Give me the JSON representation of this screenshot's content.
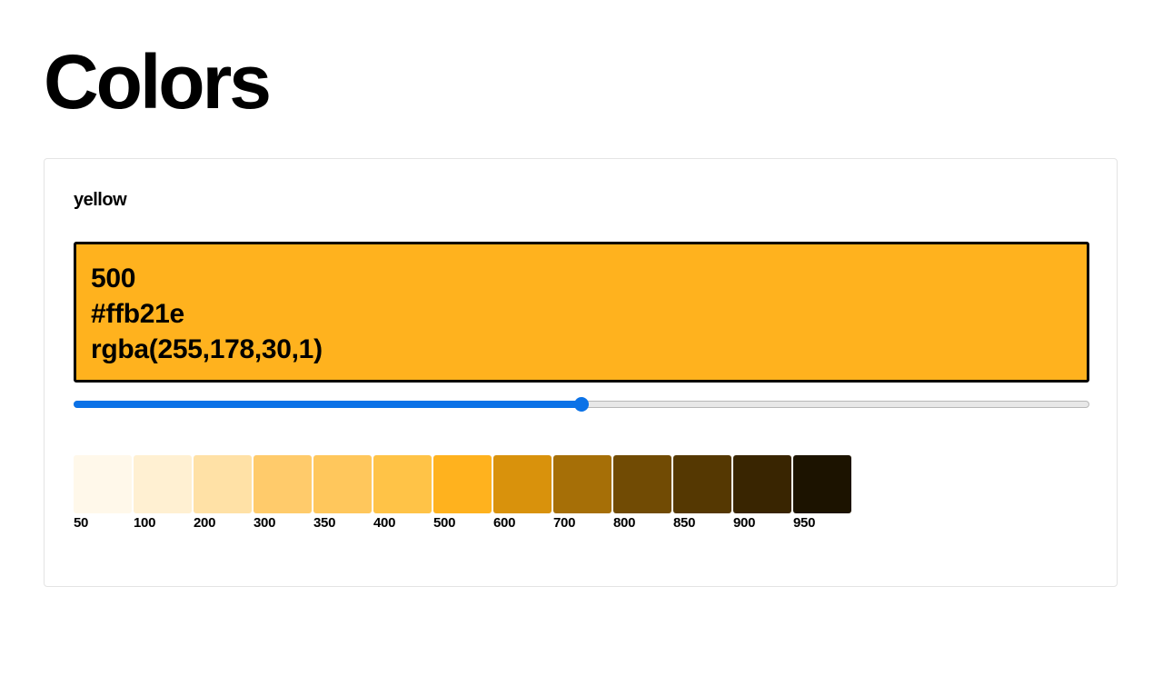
{
  "page": {
    "title": "Colors"
  },
  "palette": {
    "name": "yellow",
    "selected": {
      "shade": "500",
      "hex": "#ffb21e",
      "rgba": "rgba(255,178,30,1)"
    },
    "slider": {
      "value_index": 6,
      "max_index": 12,
      "accent_color": "#0b72e7"
    },
    "shades": [
      {
        "label": "50",
        "color": "#fff8ea"
      },
      {
        "label": "100",
        "color": "#fff0d2"
      },
      {
        "label": "200",
        "color": "#ffe1a6"
      },
      {
        "label": "300",
        "color": "#ffcb6b"
      },
      {
        "label": "350",
        "color": "#ffc75c"
      },
      {
        "label": "400",
        "color": "#ffc347"
      },
      {
        "label": "500",
        "color": "#ffb21e"
      },
      {
        "label": "600",
        "color": "#d9920c"
      },
      {
        "label": "700",
        "color": "#a66f07"
      },
      {
        "label": "800",
        "color": "#714b04"
      },
      {
        "label": "850",
        "color": "#553802"
      },
      {
        "label": "900",
        "color": "#392501"
      },
      {
        "label": "950",
        "color": "#1c1300"
      }
    ]
  }
}
